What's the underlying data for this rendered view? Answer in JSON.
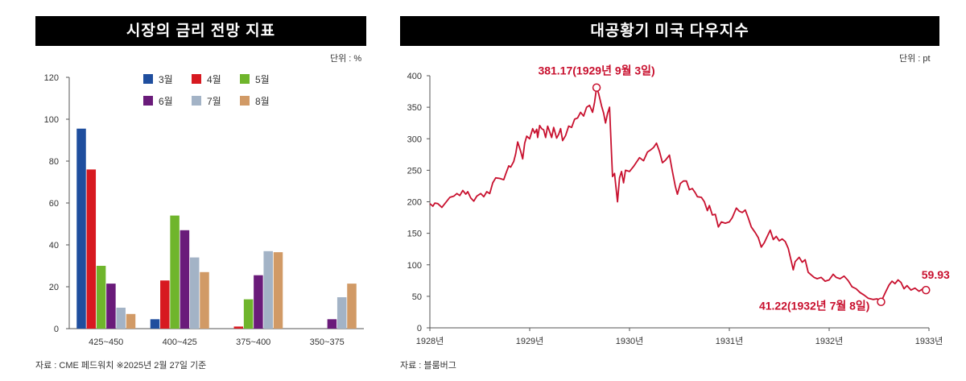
{
  "chart_data": [
    {
      "type": "bar",
      "title": "시장의 금리 전망 지표",
      "unit_label": "단위 : %",
      "source": "자료 : CME 페드워치 ※2025년 2월 27일 기준",
      "categories": [
        "425~450",
        "400~425",
        "375~400",
        "350~375"
      ],
      "ylim": [
        0,
        120
      ],
      "yticks": [
        0,
        20,
        40,
        60,
        80,
        100,
        120
      ],
      "grid": false,
      "legend_position": "top",
      "series": [
        {
          "name": "3월",
          "color": "#1f4e9e",
          "values": [
            95.5,
            4.5,
            0,
            0
          ]
        },
        {
          "name": "4월",
          "color": "#d71920",
          "values": [
            76,
            23,
            1,
            0
          ]
        },
        {
          "name": "5월",
          "color": "#6fb52c",
          "values": [
            30,
            54,
            14,
            0
          ]
        },
        {
          "name": "6월",
          "color": "#6a1b7a",
          "values": [
            21.5,
            47,
            25.5,
            4.5
          ]
        },
        {
          "name": "7월",
          "color": "#a3b3c6",
          "values": [
            10,
            34,
            37,
            15
          ]
        },
        {
          "name": "8월",
          "color": "#d19a66",
          "values": [
            7,
            27,
            36.5,
            21.5
          ]
        }
      ]
    },
    {
      "type": "line",
      "title": "대공황기 미국 다우지수",
      "unit_label": "단위 : pt",
      "source": "자료 : 블룸버그",
      "ylim": [
        0,
        400
      ],
      "yticks": [
        0,
        50,
        100,
        150,
        200,
        250,
        300,
        350,
        400
      ],
      "xlim": [
        1928,
        1933
      ],
      "xticks": [
        {
          "value": 1928,
          "label": "1928년"
        },
        {
          "value": 1929,
          "label": "1929년"
        },
        {
          "value": 1930,
          "label": "1930년"
        },
        {
          "value": 1931,
          "label": "1931년"
        },
        {
          "value": 1932,
          "label": "1932년"
        },
        {
          "value": 1933,
          "label": "1933년"
        }
      ],
      "grid": false,
      "line_color": "#c8102e",
      "series": [
        {
          "name": "",
          "points": [
            [
              1928.0,
              197
            ],
            [
              1928.03,
              193
            ],
            [
              1928.05,
              198
            ],
            [
              1928.08,
              197
            ],
            [
              1928.12,
              191
            ],
            [
              1928.16,
              199
            ],
            [
              1928.2,
              207
            ],
            [
              1928.24,
              209
            ],
            [
              1928.27,
              213
            ],
            [
              1928.3,
              210
            ],
            [
              1928.33,
              218
            ],
            [
              1928.36,
              212
            ],
            [
              1928.38,
              216
            ],
            [
              1928.41,
              206
            ],
            [
              1928.44,
              201
            ],
            [
              1928.47,
              209
            ],
            [
              1928.51,
              213
            ],
            [
              1928.54,
              208
            ],
            [
              1928.57,
              216
            ],
            [
              1928.6,
              213
            ],
            [
              1928.63,
              230
            ],
            [
              1928.66,
              238
            ],
            [
              1928.7,
              237
            ],
            [
              1928.74,
              235
            ],
            [
              1928.76,
              244
            ],
            [
              1928.79,
              257
            ],
            [
              1928.81,
              255
            ],
            [
              1928.84,
              264
            ],
            [
              1928.86,
              276
            ],
            [
              1928.88,
              295
            ],
            [
              1928.91,
              280
            ],
            [
              1928.93,
              268
            ],
            [
              1928.95,
              293
            ],
            [
              1928.97,
              304
            ],
            [
              1929.0,
              300
            ],
            [
              1929.03,
              316
            ],
            [
              1929.05,
              309
            ],
            [
              1929.07,
              315
            ],
            [
              1929.08,
              302
            ],
            [
              1929.1,
              321
            ],
            [
              1929.12,
              316
            ],
            [
              1929.14,
              314
            ],
            [
              1929.16,
              302
            ],
            [
              1929.18,
              320
            ],
            [
              1929.2,
              311
            ],
            [
              1929.22,
              302
            ],
            [
              1929.24,
              318
            ],
            [
              1929.27,
              301
            ],
            [
              1929.29,
              307
            ],
            [
              1929.31,
              316
            ],
            [
              1929.33,
              297
            ],
            [
              1929.36,
              305
            ],
            [
              1929.39,
              320
            ],
            [
              1929.42,
              318
            ],
            [
              1929.45,
              331
            ],
            [
              1929.48,
              333
            ],
            [
              1929.51,
              342
            ],
            [
              1929.54,
              336
            ],
            [
              1929.57,
              350
            ],
            [
              1929.6,
              353
            ],
            [
              1929.63,
              342
            ],
            [
              1929.65,
              358
            ],
            [
              1929.67,
              381.17
            ],
            [
              1929.69,
              372
            ],
            [
              1929.72,
              352
            ],
            [
              1929.74,
              341
            ],
            [
              1929.76,
              325
            ],
            [
              1929.78,
              340
            ],
            [
              1929.8,
              350
            ],
            [
              1929.82,
              275
            ],
            [
              1929.83,
              240
            ],
            [
              1929.85,
              245
            ],
            [
              1929.86,
              230
            ],
            [
              1929.88,
              200
            ],
            [
              1929.9,
              238
            ],
            [
              1929.92,
              248
            ],
            [
              1929.94,
              230
            ],
            [
              1929.96,
              250
            ],
            [
              1930.0,
              248
            ],
            [
              1930.04,
              256
            ],
            [
              1930.07,
              263
            ],
            [
              1930.1,
              270
            ],
            [
              1930.14,
              265
            ],
            [
              1930.18,
              279
            ],
            [
              1930.21,
              282
            ],
            [
              1930.24,
              286
            ],
            [
              1930.27,
              293
            ],
            [
              1930.3,
              280
            ],
            [
              1930.33,
              262
            ],
            [
              1930.36,
              266
            ],
            [
              1930.4,
              274
            ],
            [
              1930.43,
              248
            ],
            [
              1930.46,
              224
            ],
            [
              1930.48,
              212
            ],
            [
              1930.51,
              229
            ],
            [
              1930.54,
              233
            ],
            [
              1930.57,
              233
            ],
            [
              1930.6,
              219
            ],
            [
              1930.63,
              221
            ],
            [
              1930.66,
              214
            ],
            [
              1930.68,
              208
            ],
            [
              1930.72,
              207
            ],
            [
              1930.75,
              200
            ],
            [
              1930.78,
              186
            ],
            [
              1930.8,
              194
            ],
            [
              1930.83,
              179
            ],
            [
              1930.86,
              180
            ],
            [
              1930.89,
              160
            ],
            [
              1930.92,
              168
            ],
            [
              1930.96,
              166
            ],
            [
              1931.0,
              168
            ],
            [
              1931.03,
              175
            ],
            [
              1931.07,
              190
            ],
            [
              1931.1,
              185
            ],
            [
              1931.13,
              183
            ],
            [
              1931.16,
              187
            ],
            [
              1931.19,
              174
            ],
            [
              1931.22,
              160
            ],
            [
              1931.26,
              151
            ],
            [
              1931.29,
              143
            ],
            [
              1931.32,
              128
            ],
            [
              1931.35,
              135
            ],
            [
              1931.38,
              145
            ],
            [
              1931.41,
              155
            ],
            [
              1931.44,
              140
            ],
            [
              1931.47,
              145
            ],
            [
              1931.5,
              138
            ],
            [
              1931.53,
              141
            ],
            [
              1931.56,
              137
            ],
            [
              1931.59,
              126
            ],
            [
              1931.62,
              106
            ],
            [
              1931.64,
              92
            ],
            [
              1931.66,
              105
            ],
            [
              1931.7,
              112
            ],
            [
              1931.73,
              104
            ],
            [
              1931.76,
              108
            ],
            [
              1931.79,
              88
            ],
            [
              1931.82,
              84
            ],
            [
              1931.85,
              80
            ],
            [
              1931.88,
              78
            ],
            [
              1931.92,
              80
            ],
            [
              1931.96,
              74
            ],
            [
              1932.0,
              76
            ],
            [
              1932.04,
              85
            ],
            [
              1932.07,
              80
            ],
            [
              1932.11,
              78
            ],
            [
              1932.15,
              82
            ],
            [
              1932.19,
              75
            ],
            [
              1932.23,
              65
            ],
            [
              1932.27,
              62
            ],
            [
              1932.31,
              56
            ],
            [
              1932.35,
              52
            ],
            [
              1932.39,
              47
            ],
            [
              1932.44,
              45
            ],
            [
              1932.48,
              46
            ],
            [
              1932.52,
              41.22
            ],
            [
              1932.56,
              55
            ],
            [
              1932.6,
              68
            ],
            [
              1932.63,
              74
            ],
            [
              1932.66,
              70
            ],
            [
              1932.69,
              76
            ],
            [
              1932.72,
              72
            ],
            [
              1932.75,
              62
            ],
            [
              1932.78,
              67
            ],
            [
              1932.82,
              60
            ],
            [
              1932.86,
              63
            ],
            [
              1932.9,
              58
            ],
            [
              1932.94,
              62
            ],
            [
              1932.97,
              59.93
            ]
          ]
        }
      ],
      "annotations": [
        {
          "text": "381.17(1929년 9월 3일)",
          "x": 1929.67,
          "y": 381.17
        },
        {
          "text": "41.22(1932년 7월 8일)",
          "x": 1932.52,
          "y": 41.22
        },
        {
          "text": "59.93",
          "x": 1932.97,
          "y": 59.93
        }
      ]
    }
  ]
}
